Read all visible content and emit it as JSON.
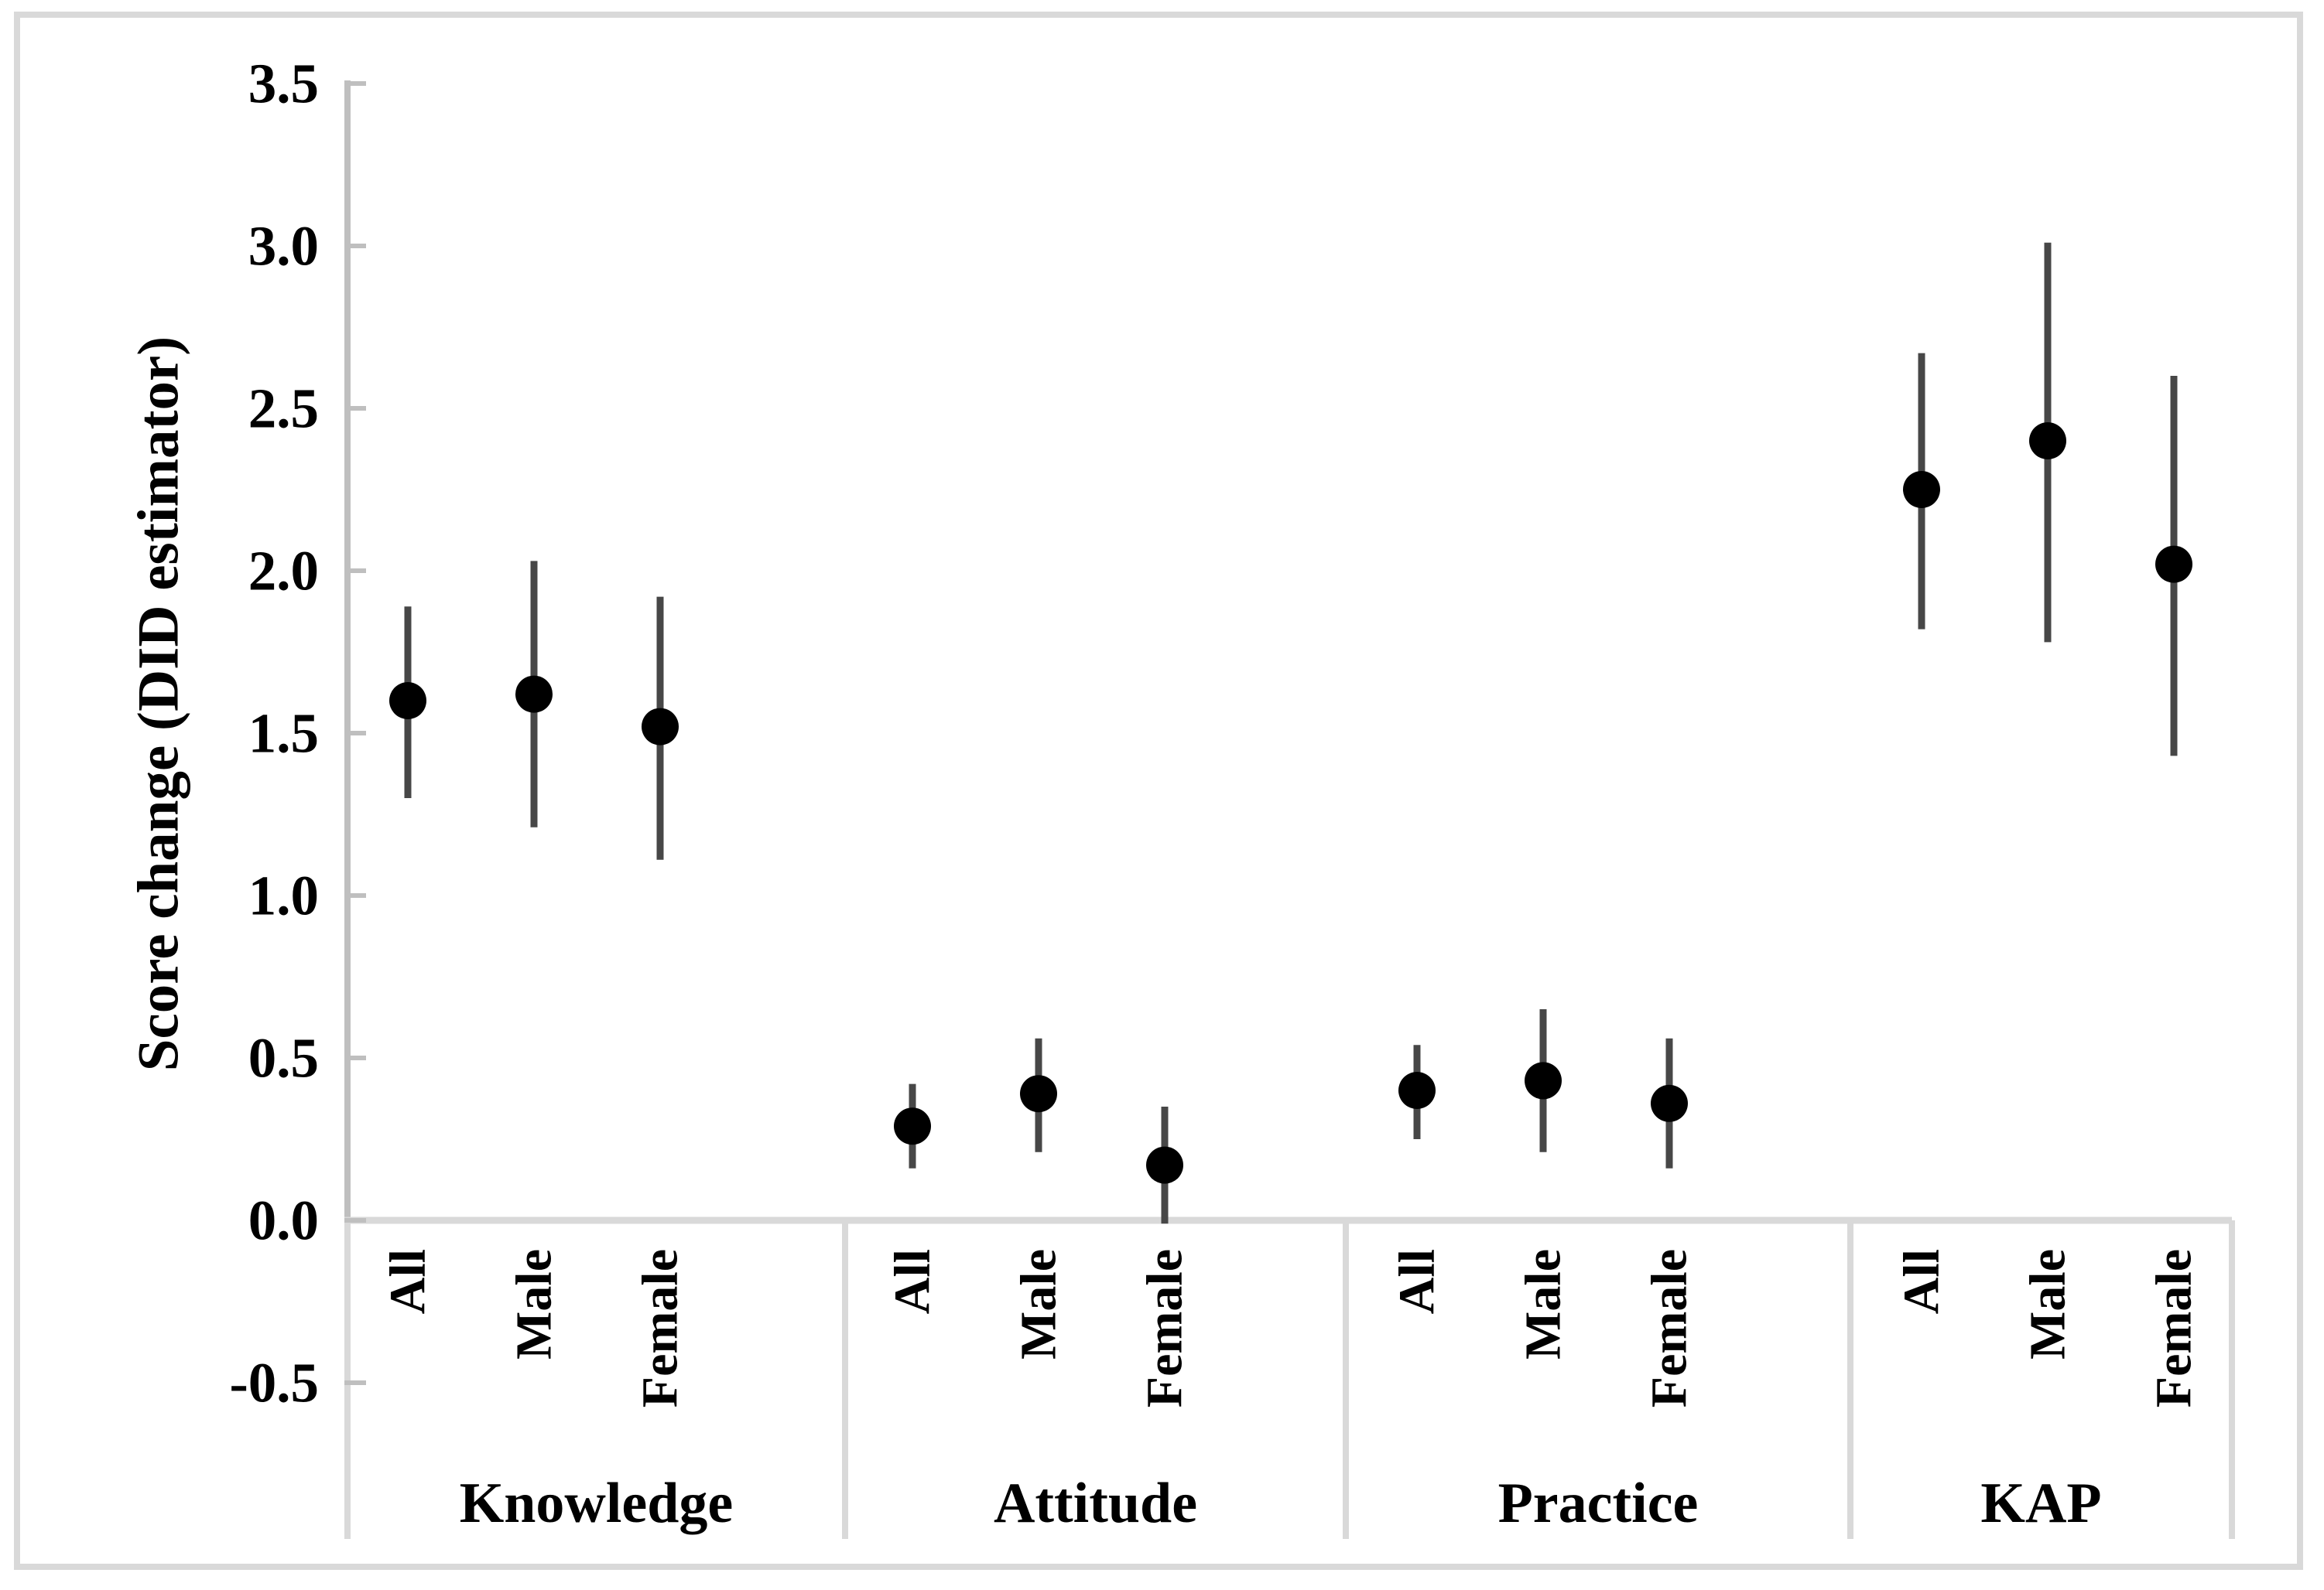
{
  "chart_data": {
    "type": "scatter",
    "subtype": "dot-with-error-bars",
    "title": "",
    "xlabel": "",
    "ylabel": "Score change (DID estimator)",
    "ylim": [
      -0.5,
      3.5
    ],
    "ytick_values": [
      3.5,
      3.0,
      2.5,
      2.0,
      1.5,
      1.0,
      0.5,
      0.0,
      -0.5
    ],
    "ytick_labels": [
      "3.5",
      "3.0",
      "2.5",
      "2.0",
      "1.5",
      "1.0",
      "0.5",
      "0.0",
      "-0.5"
    ],
    "grid": false,
    "legend": false,
    "marker": "filled-circle",
    "error_bars": true,
    "groups": [
      {
        "label": "Knowledge",
        "points": [
          {
            "category": "All",
            "value": 1.6,
            "ci_low": 1.3,
            "ci_high": 1.89
          },
          {
            "category": "Male",
            "value": 1.62,
            "ci_low": 1.21,
            "ci_high": 2.03
          },
          {
            "category": "Female",
            "value": 1.52,
            "ci_low": 1.11,
            "ci_high": 1.92
          }
        ]
      },
      {
        "label": "Attitude",
        "points": [
          {
            "category": "All",
            "value": 0.29,
            "ci_low": 0.16,
            "ci_high": 0.42
          },
          {
            "category": "Male",
            "value": 0.39,
            "ci_low": 0.21,
            "ci_high": 0.56
          },
          {
            "category": "Female",
            "value": 0.17,
            "ci_low": -0.01,
            "ci_high": 0.35
          }
        ]
      },
      {
        "label": "Practice",
        "points": [
          {
            "category": "All",
            "value": 0.4,
            "ci_low": 0.25,
            "ci_high": 0.54
          },
          {
            "category": "Male",
            "value": 0.43,
            "ci_low": 0.21,
            "ci_high": 0.65
          },
          {
            "category": "Female",
            "value": 0.36,
            "ci_low": 0.16,
            "ci_high": 0.56
          }
        ]
      },
      {
        "label": "KAP",
        "points": [
          {
            "category": "All",
            "value": 2.25,
            "ci_low": 1.82,
            "ci_high": 2.67
          },
          {
            "category": "Male",
            "value": 2.4,
            "ci_low": 1.78,
            "ci_high": 3.01
          },
          {
            "category": "Female",
            "value": 2.02,
            "ci_low": 1.43,
            "ci_high": 2.6
          }
        ]
      }
    ]
  },
  "colors": {
    "background": "#ffffff",
    "point": "#000000",
    "error_bar": "#474747",
    "axis_line": "#bfbfbf",
    "frame_line": "#d9d9d9",
    "text": "#000000"
  }
}
